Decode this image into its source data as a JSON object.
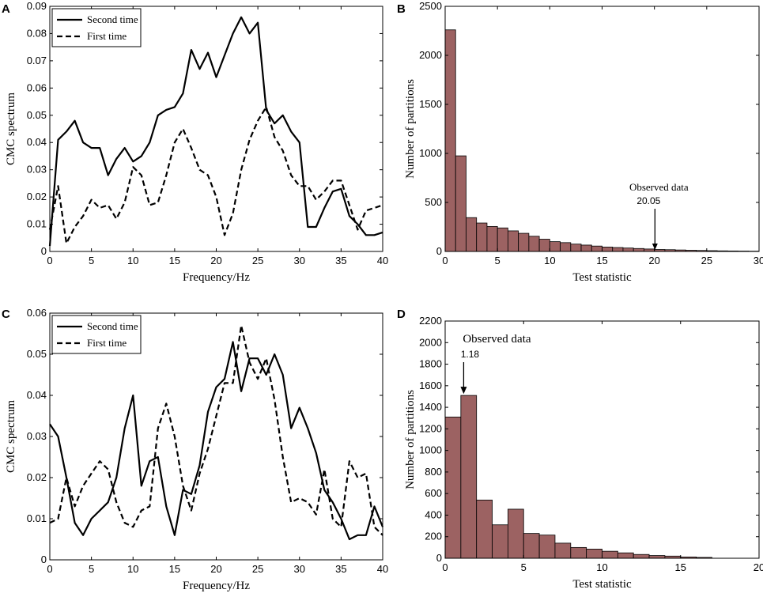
{
  "colors": {
    "bar_fill": "#9c6262",
    "bar_stroke": "#000000",
    "line": "#000000"
  },
  "chart_data": [
    {
      "panel": "A",
      "type": "line",
      "title": "",
      "xlabel": "Frequency/Hz",
      "ylabel": "CMC spectrum",
      "xlim": [
        0,
        40
      ],
      "ylim": [
        0,
        0.09
      ],
      "xticks": [
        0,
        5,
        10,
        15,
        20,
        25,
        30,
        35,
        40
      ],
      "yticks": [
        0,
        0.01,
        0.02,
        0.03,
        0.04,
        0.05,
        0.06,
        0.07,
        0.08,
        0.09
      ],
      "ytick_labels": [
        "0",
        "0.01",
        "0.02",
        "0.03",
        "0.04",
        "0.05",
        "0.06",
        "0.07",
        "0.08",
        "0.09"
      ],
      "legend": "top-left",
      "x": [
        0,
        1,
        2,
        3,
        4,
        5,
        6,
        7,
        8,
        9,
        10,
        11,
        12,
        13,
        14,
        15,
        16,
        17,
        18,
        19,
        20,
        21,
        22,
        23,
        24,
        25,
        26,
        27,
        28,
        29,
        30,
        31,
        32,
        33,
        34,
        35,
        36,
        37,
        38,
        39,
        40
      ],
      "series": [
        {
          "name": "Second time",
          "style": "solid",
          "values": [
            0.002,
            0.041,
            0.044,
            0.048,
            0.04,
            0.038,
            0.038,
            0.028,
            0.034,
            0.038,
            0.033,
            0.035,
            0.04,
            0.05,
            0.052,
            0.053,
            0.058,
            0.074,
            0.067,
            0.073,
            0.064,
            0.072,
            0.08,
            0.086,
            0.08,
            0.084,
            0.052,
            0.047,
            0.05,
            0.044,
            0.04,
            0.009,
            0.009,
            0.016,
            0.022,
            0.023,
            0.013,
            0.01,
            0.006,
            0.006,
            0.007
          ]
        },
        {
          "name": "First time",
          "style": "dashed",
          "values": [
            0.008,
            0.024,
            0.003,
            0.009,
            0.013,
            0.019,
            0.016,
            0.017,
            0.012,
            0.018,
            0.031,
            0.028,
            0.017,
            0.018,
            0.028,
            0.04,
            0.045,
            0.038,
            0.03,
            0.028,
            0.02,
            0.006,
            0.014,
            0.03,
            0.041,
            0.048,
            0.053,
            0.042,
            0.037,
            0.028,
            0.024,
            0.024,
            0.019,
            0.022,
            0.026,
            0.026,
            0.017,
            0.008,
            0.015,
            0.016,
            0.017
          ]
        }
      ]
    },
    {
      "panel": "B",
      "type": "bar",
      "title": "",
      "xlabel": "Test statistic",
      "ylabel": "Number of partitions",
      "xlim": [
        0,
        30
      ],
      "ylim": [
        0,
        2500
      ],
      "xticks": [
        0,
        5,
        10,
        15,
        20,
        25,
        30
      ],
      "yticks": [
        0,
        500,
        1000,
        1500,
        2000,
        2500
      ],
      "bin_width": 1,
      "bin_start": 0,
      "values": [
        2260,
        975,
        345,
        290,
        255,
        240,
        210,
        185,
        155,
        125,
        100,
        90,
        75,
        65,
        55,
        45,
        40,
        35,
        30,
        25,
        20,
        18,
        15,
        12,
        10,
        8,
        6,
        5,
        4,
        3
      ],
      "annotation": {
        "text": "Observed data",
        "value_label": "20.05",
        "x": 20.05
      }
    },
    {
      "panel": "C",
      "type": "line",
      "title": "",
      "xlabel": "Frequency/Hz",
      "ylabel": "CMC spectrum",
      "xlim": [
        0,
        40
      ],
      "ylim": [
        0,
        0.06
      ],
      "xticks": [
        0,
        5,
        10,
        15,
        20,
        25,
        30,
        35,
        40
      ],
      "yticks": [
        0,
        0.01,
        0.02,
        0.03,
        0.04,
        0.05,
        0.06
      ],
      "ytick_labels": [
        "0",
        "0.01",
        "0.02",
        "0.03",
        "0.04",
        "0.05",
        "0.06"
      ],
      "legend": "top-left",
      "x": [
        0,
        1,
        2,
        3,
        4,
        5,
        6,
        7,
        8,
        9,
        10,
        11,
        12,
        13,
        14,
        15,
        16,
        17,
        18,
        19,
        20,
        21,
        22,
        23,
        24,
        25,
        26,
        27,
        28,
        29,
        30,
        31,
        32,
        33,
        34,
        35,
        36,
        37,
        38,
        39,
        40
      ],
      "series": [
        {
          "name": "Second time",
          "style": "solid",
          "values": [
            0.033,
            0.03,
            0.02,
            0.009,
            0.006,
            0.01,
            0.012,
            0.014,
            0.02,
            0.032,
            0.04,
            0.018,
            0.024,
            0.025,
            0.013,
            0.006,
            0.017,
            0.016,
            0.023,
            0.036,
            0.042,
            0.044,
            0.053,
            0.041,
            0.049,
            0.049,
            0.045,
            0.05,
            0.045,
            0.032,
            0.037,
            0.032,
            0.026,
            0.017,
            0.014,
            0.01,
            0.005,
            0.006,
            0.006,
            0.013,
            0.008
          ]
        },
        {
          "name": "First time",
          "style": "dashed",
          "values": [
            0.009,
            0.01,
            0.02,
            0.013,
            0.018,
            0.021,
            0.024,
            0.022,
            0.014,
            0.009,
            0.008,
            0.012,
            0.013,
            0.032,
            0.038,
            0.03,
            0.018,
            0.012,
            0.021,
            0.027,
            0.035,
            0.043,
            0.043,
            0.057,
            0.048,
            0.044,
            0.049,
            0.039,
            0.025,
            0.014,
            0.015,
            0.014,
            0.011,
            0.022,
            0.01,
            0.008,
            0.024,
            0.02,
            0.021,
            0.008,
            0.006
          ]
        }
      ]
    },
    {
      "panel": "D",
      "type": "bar",
      "title": "",
      "xlabel": "Test statistic",
      "ylabel": "Number of partitions",
      "xlim": [
        0,
        20
      ],
      "ylim": [
        0,
        2200
      ],
      "xticks": [
        0,
        5,
        10,
        15,
        20
      ],
      "yticks": [
        0,
        200,
        400,
        600,
        800,
        1000,
        1200,
        1400,
        1600,
        1800,
        2000,
        2200
      ],
      "bin_width": 1,
      "bin_start": 0,
      "values": [
        1310,
        1510,
        540,
        310,
        455,
        230,
        215,
        140,
        100,
        85,
        65,
        50,
        35,
        25,
        20,
        12,
        8
      ],
      "annotation": {
        "text": "Observed data",
        "value_label": "1.18",
        "x": 1.18
      }
    }
  ]
}
